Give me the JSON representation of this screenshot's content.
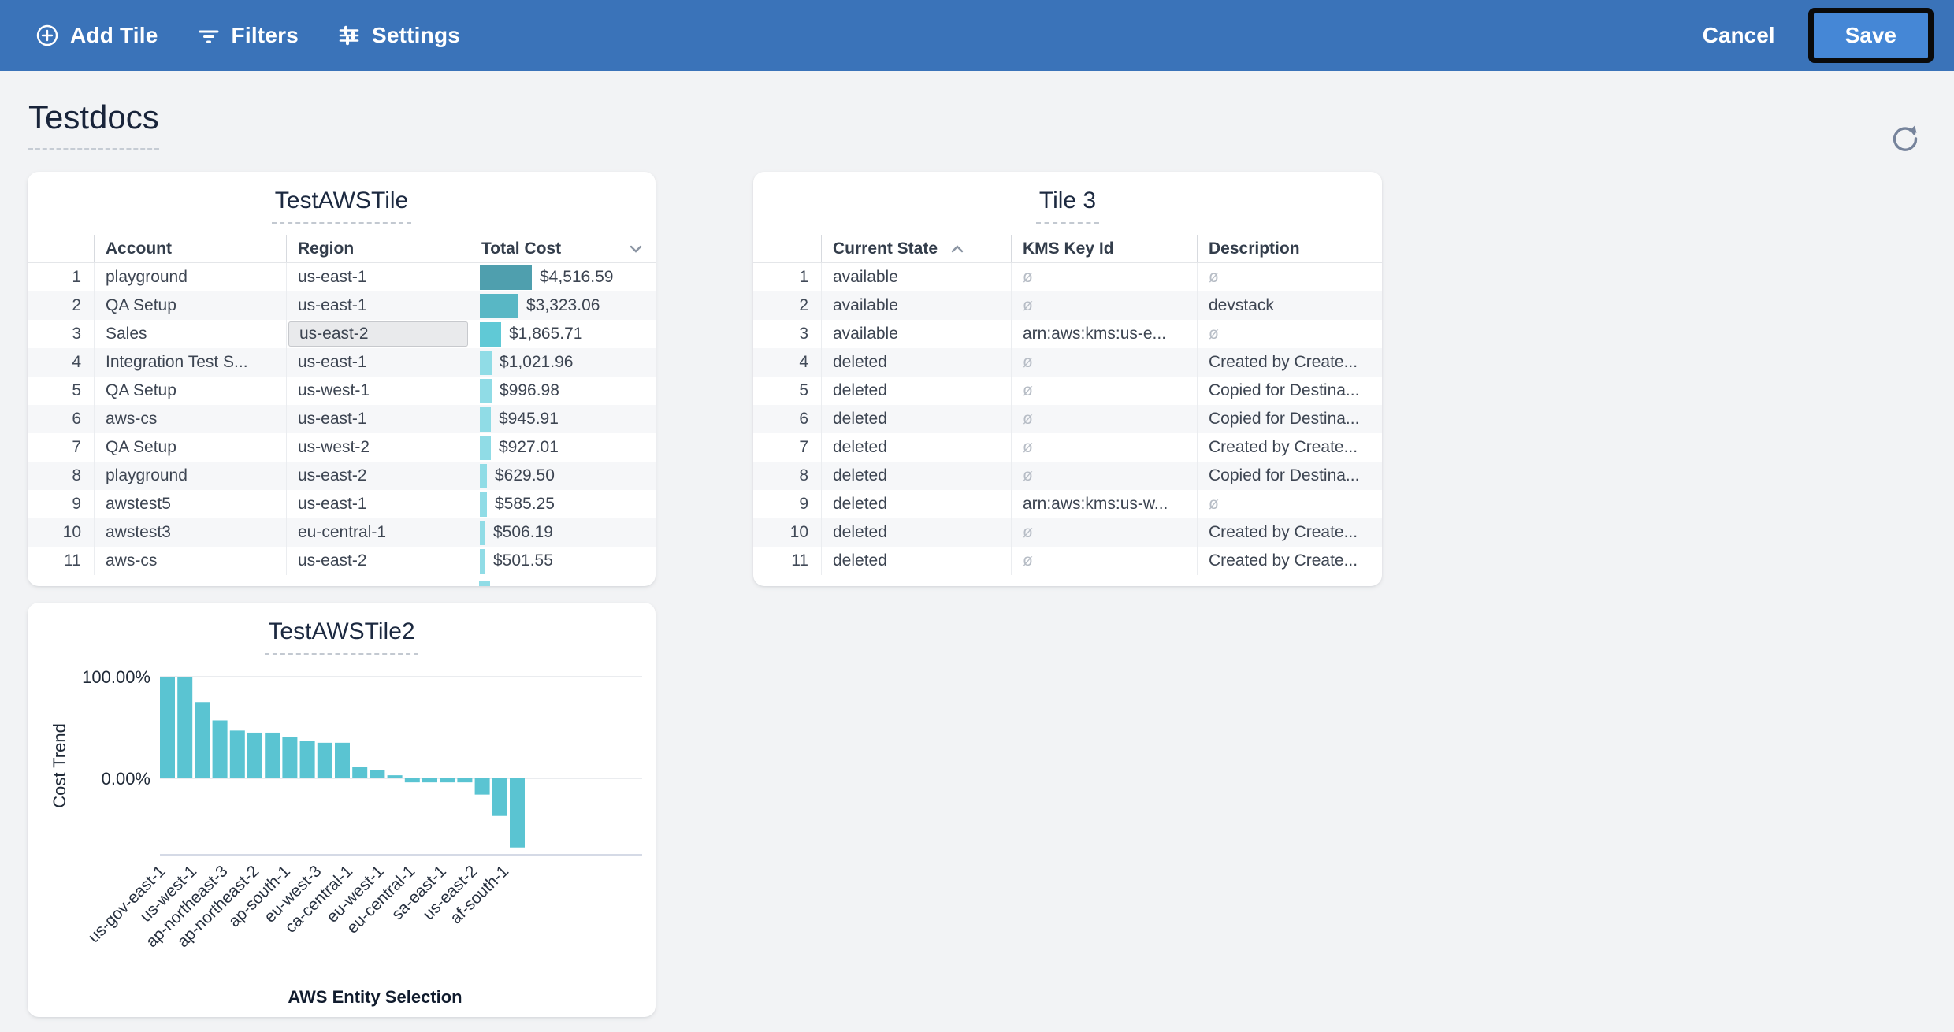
{
  "topbar": {
    "add_tile": "Add Tile",
    "filters": "Filters",
    "settings": "Settings",
    "cancel": "Cancel",
    "save": "Save",
    "bar_color": "#3a73b9",
    "save_button_color": "#4587d6"
  },
  "page": {
    "title": "Testdocs"
  },
  "tiles": {
    "tile1": {
      "title": "TestAWSTile",
      "columns": [
        {
          "label": "Account",
          "sort": null
        },
        {
          "label": "Region",
          "sort": null
        },
        {
          "label": "Total Cost",
          "sort": "desc"
        }
      ],
      "rows": [
        {
          "num": "1",
          "account": "playground",
          "region": "us-east-1",
          "cost_label": "$4,516.59",
          "cost_value": 4516.59
        },
        {
          "num": "2",
          "account": "QA Setup",
          "region": "us-east-1",
          "cost_label": "$3,323.06",
          "cost_value": 3323.06
        },
        {
          "num": "3",
          "account": "Sales",
          "region": "us-east-2",
          "cost_label": "$1,865.71",
          "cost_value": 1865.71
        },
        {
          "num": "4",
          "account": "Integration Test S...",
          "region": "us-east-1",
          "cost_label": "$1,021.96",
          "cost_value": 1021.96
        },
        {
          "num": "5",
          "account": "QA Setup",
          "region": "us-west-1",
          "cost_label": "$996.98",
          "cost_value": 996.98
        },
        {
          "num": "6",
          "account": "aws-cs",
          "region": "us-east-1",
          "cost_label": "$945.91",
          "cost_value": 945.91
        },
        {
          "num": "7",
          "account": "QA Setup",
          "region": "us-west-2",
          "cost_label": "$927.01",
          "cost_value": 927.01
        },
        {
          "num": "8",
          "account": "playground",
          "region": "us-east-2",
          "cost_label": "$629.50",
          "cost_value": 629.5
        },
        {
          "num": "9",
          "account": "awstest5",
          "region": "us-east-1",
          "cost_label": "$585.25",
          "cost_value": 585.25
        },
        {
          "num": "10",
          "account": "awstest3",
          "region": "eu-central-1",
          "cost_label": "$506.19",
          "cost_value": 506.19
        },
        {
          "num": "11",
          "account": "aws-cs",
          "region": "us-east-2",
          "cost_label": "$501.55",
          "cost_value": 501.55
        }
      ],
      "selected_cell": {
        "row_index": 2,
        "field": "region"
      },
      "bar_palette": [
        "#4f9fae",
        "#58b7c5",
        "#60c9d6",
        "#90dce6"
      ]
    },
    "tile2": {
      "title": "Tile 3",
      "null_marker": "ø",
      "columns": [
        {
          "label": "Current State",
          "sort": "asc"
        },
        {
          "label": "KMS Key Id",
          "sort": null
        },
        {
          "label": "Description",
          "sort": null
        }
      ],
      "rows": [
        {
          "num": "1",
          "state": "available",
          "kms": null,
          "desc": null
        },
        {
          "num": "2",
          "state": "available",
          "kms": null,
          "desc": "devstack"
        },
        {
          "num": "3",
          "state": "available",
          "kms": "arn:aws:kms:us-e...",
          "desc": null
        },
        {
          "num": "4",
          "state": "deleted",
          "kms": null,
          "desc": "Created by Create..."
        },
        {
          "num": "5",
          "state": "deleted",
          "kms": null,
          "desc": "Copied for Destina..."
        },
        {
          "num": "6",
          "state": "deleted",
          "kms": null,
          "desc": "Copied for Destina..."
        },
        {
          "num": "7",
          "state": "deleted",
          "kms": null,
          "desc": "Created by Create..."
        },
        {
          "num": "8",
          "state": "deleted",
          "kms": null,
          "desc": "Copied for Destina..."
        },
        {
          "num": "9",
          "state": "deleted",
          "kms": "arn:aws:kms:us-w...",
          "desc": null
        },
        {
          "num": "10",
          "state": "deleted",
          "kms": null,
          "desc": "Created by Create..."
        },
        {
          "num": "11",
          "state": "deleted",
          "kms": null,
          "desc": "Created by Create..."
        }
      ]
    }
  },
  "chart_data": {
    "type": "bar",
    "title": "TestAWSTile2",
    "xlabel": "AWS Entity Selection",
    "ylabel": "Cost Trend",
    "y_tick_labels": [
      "100.00%",
      "0.00%"
    ],
    "ylim": [
      -75,
      100
    ],
    "grid": true,
    "bar_color": "#5ac4d2",
    "values_percent": [
      100,
      100,
      75,
      57,
      47,
      45,
      45,
      41,
      37,
      35,
      35,
      11,
      8,
      3,
      -4,
      -4,
      -4,
      -4,
      -16,
      -37,
      -68
    ],
    "x_tick_labels": [
      "us-gov-east-1",
      "us-west-1",
      "ap-northeast-3",
      "ap-northeast-2",
      "ap-south-1",
      "eu-west-3",
      "ca-central-1",
      "eu-west-1",
      "eu-central-1",
      "sa-east-1",
      "us-east-2",
      "af-south-1"
    ]
  }
}
